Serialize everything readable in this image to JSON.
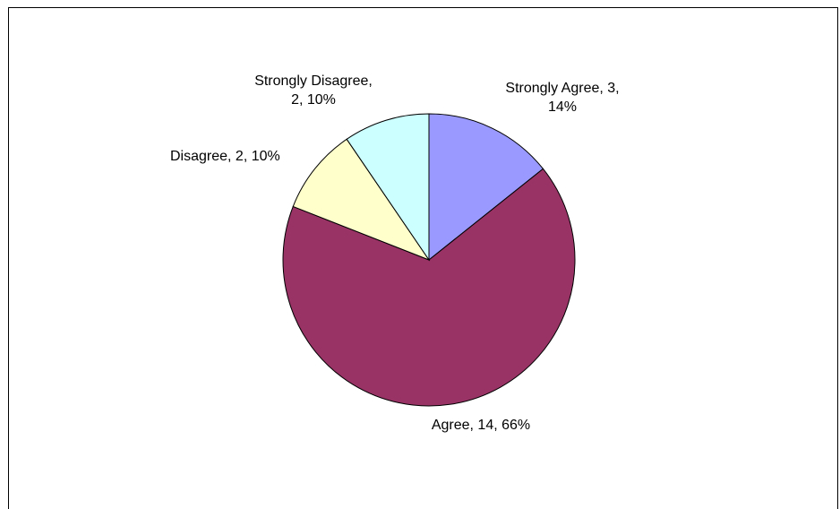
{
  "chart_data": {
    "type": "pie",
    "title": "",
    "legend": "none",
    "slices": [
      {
        "label": "Strongly Agree",
        "value": 3,
        "percent": "14%",
        "color": "#9999ff",
        "label_lines": [
          "Strongly Agree, 3,",
          "14%"
        ]
      },
      {
        "label": "Agree",
        "value": 14,
        "percent": "66%",
        "color": "#993366",
        "label_lines": [
          "Agree, 14, 66%"
        ]
      },
      {
        "label": "Disagree",
        "value": 2,
        "percent": "10%",
        "color": "#ffffcc",
        "label_lines": [
          "Disagree, 2, 10%"
        ]
      },
      {
        "label": "Strongly Disagree",
        "value": 2,
        "percent": "10%",
        "color": "#ccffff",
        "label_lines": [
          "Strongly Disagree,",
          "2, 10%"
        ]
      }
    ]
  }
}
